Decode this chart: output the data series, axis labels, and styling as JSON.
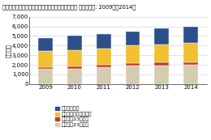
{
  "title": "国内コロケーション市場　データセンター所在地別 支出額予測: 2009年～2014年",
  "years": [
    2009,
    2010,
    2011,
    2012,
    2013,
    2014
  ],
  "series": {
    "東京都（23区内）": [
      1550,
      1600,
      1750,
      1900,
      1950,
      2000
    ],
    "東京都（23区外）": [
      200,
      210,
      280,
      290,
      280,
      270
    ],
    "東京都以外の関東地方": [
      1650,
      1700,
      1700,
      1800,
      1900,
      2050
    ],
    "その他の地域": [
      1350,
      1490,
      1470,
      1510,
      1670,
      1680
    ]
  },
  "colors": {
    "東京都（23区内）": "#d3ccb0",
    "東京都（23区外）": "#c0392b",
    "東京都以外の関東地方": "#f0c030",
    "その他の地域": "#2c4f8c"
  },
  "ylabel": "（億円）",
  "ylim": [
    0,
    7000
  ],
  "yticks": [
    0,
    1000,
    2000,
    3000,
    4000,
    5000,
    6000,
    7000
  ],
  "legend_order": [
    "その他の地域",
    "東京都以外の関東地方",
    "東京都（23区外）",
    "東京都（23区内）"
  ],
  "stack_order": [
    "東京都（23区内）",
    "東京都（23区外）",
    "東京都以外の関東地方",
    "その他の地域"
  ],
  "title_fontsize": 4.8,
  "axis_fontsize": 5.0,
  "legend_fontsize": 4.5,
  "bar_width": 0.5
}
